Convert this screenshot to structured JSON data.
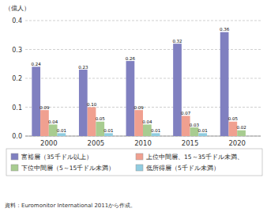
{
  "chart_data": {
    "type": "bar",
    "y_label": "（億人）",
    "annotations": [
      "資料：Euromonitor International 2011から作成。"
    ],
    "categories": [
      "2000",
      "2005",
      "2010",
      "2015",
      "2020"
    ],
    "series": [
      {
        "name": "富裕層（35千ドル以上）",
        "color": "#8080c0",
        "values": [
          0.24,
          0.23,
          0.26,
          0.32,
          0.36
        ],
        "value_labels": [
          "0.24",
          "0.23",
          "0.26",
          "0.32",
          "0.36"
        ]
      },
      {
        "name": "上位中間層、15～35千ドル未満、",
        "color": "#f0a090",
        "values": [
          0.09,
          0.1,
          0.09,
          0.07,
          0.05
        ],
        "value_labels": [
          "0.09",
          "0.10",
          "0.09",
          "0.07",
          "0.05"
        ]
      },
      {
        "name": "下位中間層（5～15千ドル未満）",
        "color": "#a8cc90",
        "values": [
          0.04,
          0.05,
          0.04,
          0.03,
          0.02
        ],
        "value_labels": [
          "0.04",
          "0.05",
          "0.04",
          "0.03",
          "0.02"
        ]
      },
      {
        "name": "低所得層（5千ドル未満）",
        "color": "#90cce0",
        "values": [
          0.01,
          0.01,
          0.01,
          0.01,
          0.0
        ],
        "value_labels": [
          "0.01",
          "0.01",
          "0.01",
          "0.01",
          null
        ]
      }
    ],
    "ylim": [
      0.0,
      0.4
    ],
    "yticks": [
      {
        "value": 0.0,
        "label": "0.0"
      },
      0.1,
      0.2,
      0.3,
      0.4
    ],
    "grid": true,
    "legend": "bottom",
    "data_labels": true
  }
}
